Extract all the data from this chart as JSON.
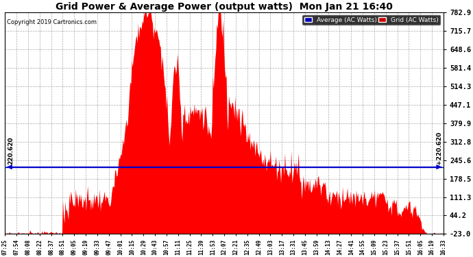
{
  "title": "Grid Power & Average Power (output watts)  Mon Jan 21 16:40",
  "copyright": "Copyright 2019 Cartronics.com",
  "yticks": [
    -23.0,
    44.2,
    111.3,
    178.5,
    245.6,
    312.8,
    379.9,
    447.1,
    514.3,
    581.4,
    648.6,
    715.7,
    782.9
  ],
  "ylim": [
    -23.0,
    782.9
  ],
  "hline_value": 220.62,
  "hline_label": "220.620",
  "grid_color": "#ff0000",
  "avg_color": "#0000cc",
  "background_color": "#ffffff",
  "plot_bg_color": "#ffffff",
  "legend_avg_bg": "#0000bb",
  "legend_grid_bg": "#cc0000",
  "xtick_labels": [
    "07:25",
    "07:54",
    "08:08",
    "08:22",
    "08:37",
    "08:51",
    "09:05",
    "09:19",
    "09:33",
    "09:47",
    "10:01",
    "10:15",
    "10:29",
    "10:43",
    "10:57",
    "11:11",
    "11:25",
    "11:39",
    "11:53",
    "12:07",
    "12:21",
    "12:35",
    "12:49",
    "13:03",
    "13:17",
    "13:31",
    "13:45",
    "13:59",
    "14:13",
    "14:27",
    "14:41",
    "14:55",
    "15:09",
    "15:23",
    "15:37",
    "15:51",
    "16:05",
    "16:19",
    "16:33"
  ]
}
